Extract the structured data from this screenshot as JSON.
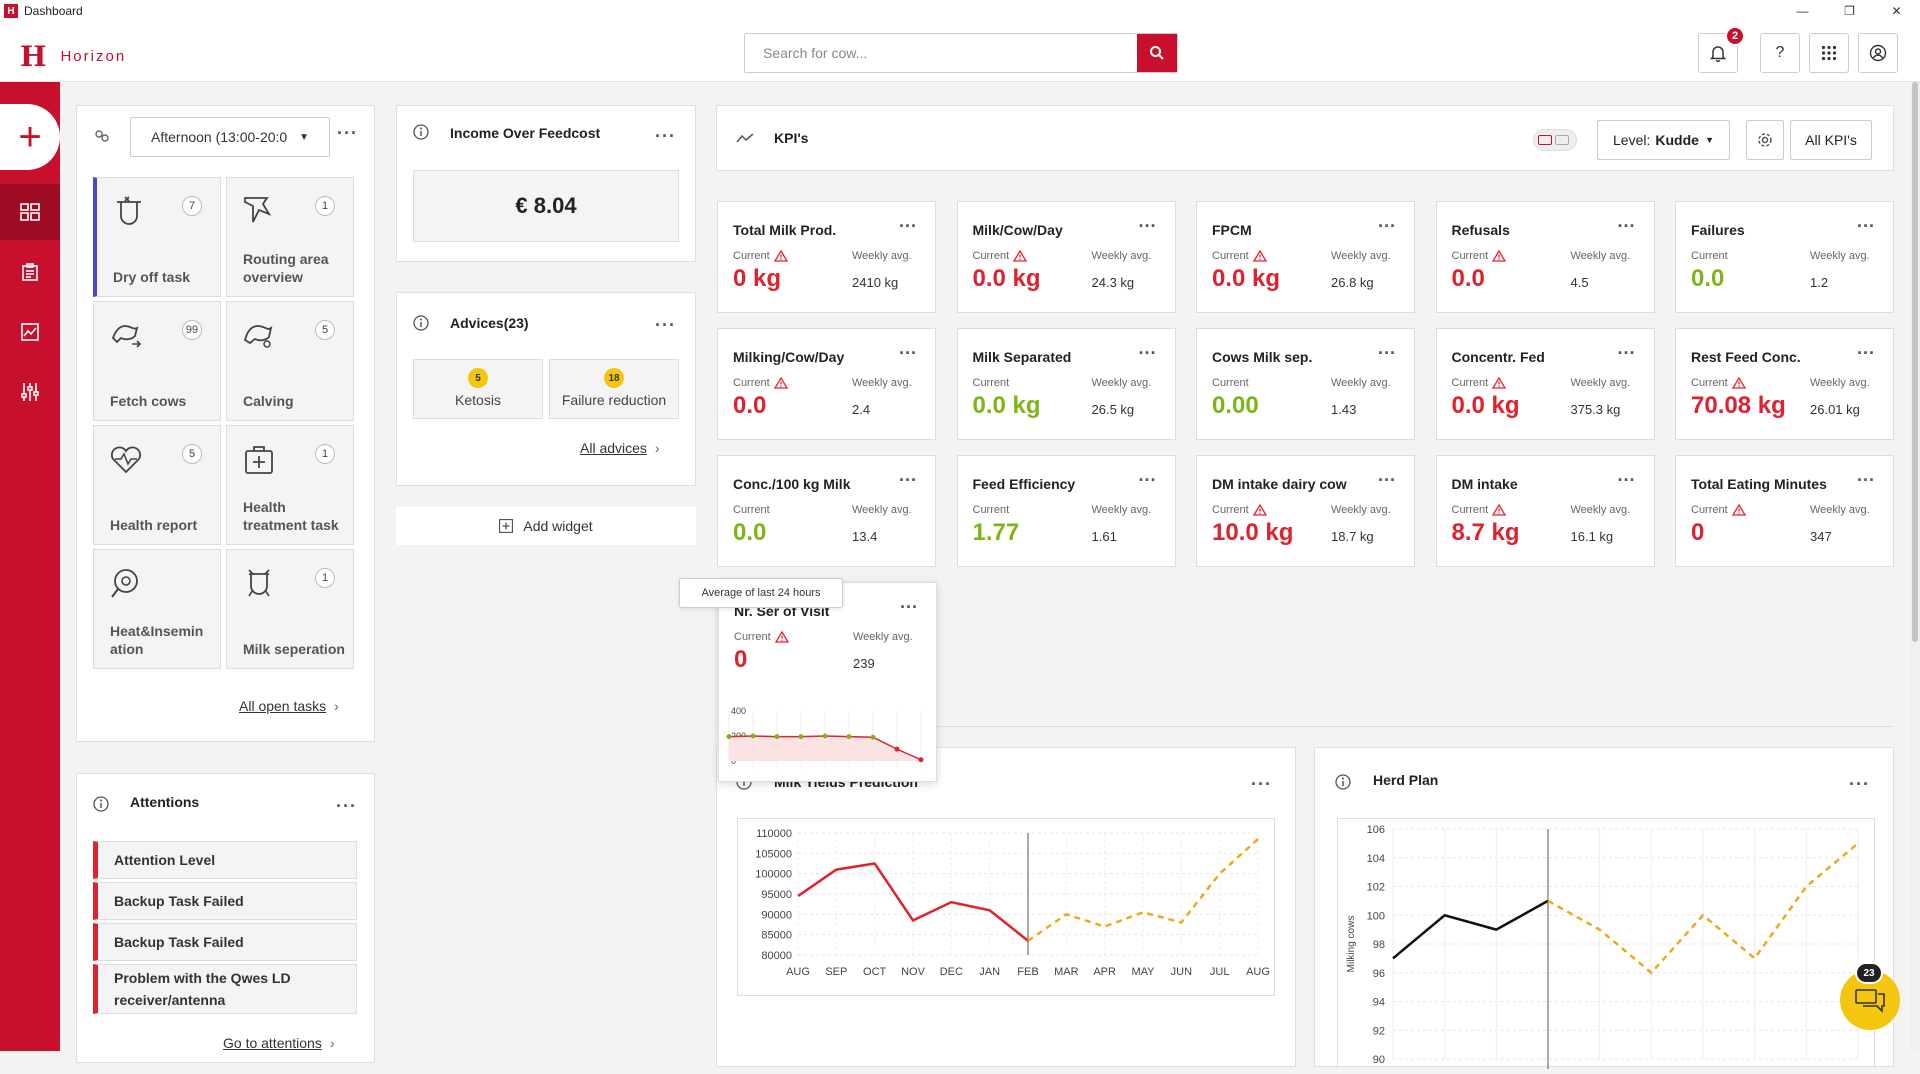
{
  "window": {
    "title": "Dashboard",
    "minimize": "—",
    "maximize": "❐",
    "close": "✕"
  },
  "header": {
    "logo_letter": "H",
    "logo_text": "Horizon",
    "search_placeholder": "Search for cow...",
    "notifications_count": "2",
    "help_label": "?"
  },
  "tasks": {
    "period": "Afternoon (13:00-20:0",
    "items": [
      {
        "label": "Dry off task",
        "count": "7"
      },
      {
        "label": "Routing area overview",
        "count": "1"
      },
      {
        "label": "Fetch cows",
        "count": "99"
      },
      {
        "label": "Calving",
        "count": "5"
      },
      {
        "label": "Health report",
        "count": "5"
      },
      {
        "label": "Health treatment task",
        "count": "1"
      },
      {
        "label": "Heat&Insemin ation",
        "count": ""
      },
      {
        "label": "Milk seperation",
        "count": "1"
      }
    ],
    "all_link": "All open tasks"
  },
  "income": {
    "title": "Income Over Feedcost",
    "value": "€ 8.04"
  },
  "advices": {
    "title": "Advices(23)",
    "items": [
      {
        "label": "Ketosis",
        "count": "5"
      },
      {
        "label": "Failure reduction",
        "count": "18"
      }
    ],
    "all_link": "All advices"
  },
  "add_widget": "Add widget",
  "attentions": {
    "title": "Attentions",
    "items": [
      "Attention Level",
      "Backup Task Failed",
      "Backup Task Failed",
      "Problem with the Qwes LD receiver/antenna"
    ],
    "link": "Go to attentions"
  },
  "kpis": {
    "title": "KPI's",
    "level_label": "Level:",
    "level_value": "Kudde",
    "all_label": "All KPI's",
    "current_label": "Current",
    "weekly_label": "Weekly avg.",
    "items": [
      {
        "title": "Total Milk Prod.",
        "current": "0 kg",
        "weekly": "2410 kg",
        "status": "red"
      },
      {
        "title": "Milk/Cow/Day",
        "current": "0.0 kg",
        "weekly": "24.3 kg",
        "status": "red"
      },
      {
        "title": "FPCM",
        "current": "0.0 kg",
        "weekly": "26.8 kg",
        "status": "red"
      },
      {
        "title": "Refusals",
        "current": "0.0",
        "weekly": "4.5",
        "status": "red"
      },
      {
        "title": "Failures",
        "current": "0.0",
        "weekly": "1.2",
        "status": "green"
      },
      {
        "title": "Milking/Cow/Day",
        "current": "0.0",
        "weekly": "2.4",
        "status": "red"
      },
      {
        "title": "Milk Separated",
        "current": "0.0 kg",
        "weekly": "26.5 kg",
        "status": "green"
      },
      {
        "title": "Cows Milk sep.",
        "current": "0.00",
        "weekly": "1.43",
        "status": "green"
      },
      {
        "title": "Concentr. Fed",
        "current": "0.0 kg",
        "weekly": "375.3 kg",
        "status": "red"
      },
      {
        "title": "Rest Feed Conc.",
        "current": "70.08 kg",
        "weekly": "26.01 kg",
        "status": "red"
      },
      {
        "title": "Conc./100 kg Milk",
        "current": "0.0",
        "weekly": "13.4",
        "status": "green"
      },
      {
        "title": "Feed Efficiency",
        "current": "1.77",
        "weekly": "1.61",
        "status": "green"
      },
      {
        "title": "DM intake dairy cow",
        "current": "10.0 kg",
        "weekly": "18.7 kg",
        "status": "red"
      },
      {
        "title": "DM intake",
        "current": "8.7 kg",
        "weekly": "16.1 kg",
        "status": "red"
      },
      {
        "title": "Total Eating Minutes",
        "current": "0",
        "weekly": "347",
        "status": "red"
      }
    ],
    "drag": {
      "title": "Nr. Ser of Visit",
      "current": "0",
      "weekly": "239",
      "tooltip": "Average of last 24 hours",
      "y_ticks": [
        "400",
        "200",
        "0"
      ]
    }
  },
  "chart_data": [
    {
      "type": "line",
      "title": "Milk Yields Prediction",
      "categories": [
        "AUG",
        "SEP",
        "OCT",
        "NOV",
        "DEC",
        "JAN",
        "FEB",
        "MAR",
        "APR",
        "MAY",
        "JUN",
        "JUL",
        "AUG"
      ],
      "yticks": [
        "110000",
        "105000",
        "100000",
        "95000",
        "90000",
        "85000",
        "80000"
      ],
      "ylim": [
        80000,
        110000
      ],
      "series": [
        {
          "values": [
            94500,
            101000,
            102500,
            88500,
            93000,
            91000,
            83500,
            null,
            null,
            null,
            null,
            null,
            null
          ],
          "color": "#e0222e"
        },
        {
          "values": [
            null,
            null,
            null,
            null,
            null,
            null,
            83500,
            90000,
            87000,
            90500,
            88000,
            100000,
            108500
          ],
          "color": "#f0a818",
          "dashed": true
        }
      ]
    },
    {
      "type": "line",
      "title": "Herd Plan",
      "ylabel": "Milking cows",
      "yticks": [
        "106",
        "104",
        "102",
        "100",
        "98",
        "96",
        "94",
        "92",
        "90"
      ],
      "ylim": [
        90,
        106
      ],
      "series": [
        {
          "values": [
            97,
            100,
            99,
            101,
            null,
            null,
            null,
            null,
            null,
            null
          ],
          "color": "#111"
        },
        {
          "values": [
            null,
            null,
            null,
            101,
            99,
            96,
            100,
            97,
            102,
            105
          ],
          "color": "#f0a818",
          "dashed": true
        }
      ]
    },
    {
      "type": "line",
      "title": "Nr. Ser of Visit",
      "ylim": [
        0,
        400
      ],
      "series": [
        {
          "values": [
            195,
            200,
            195,
            195,
            200,
            195,
            190,
            95,
            10
          ],
          "color": "#e0222e"
        }
      ]
    }
  ],
  "chat": {
    "count": "23"
  }
}
